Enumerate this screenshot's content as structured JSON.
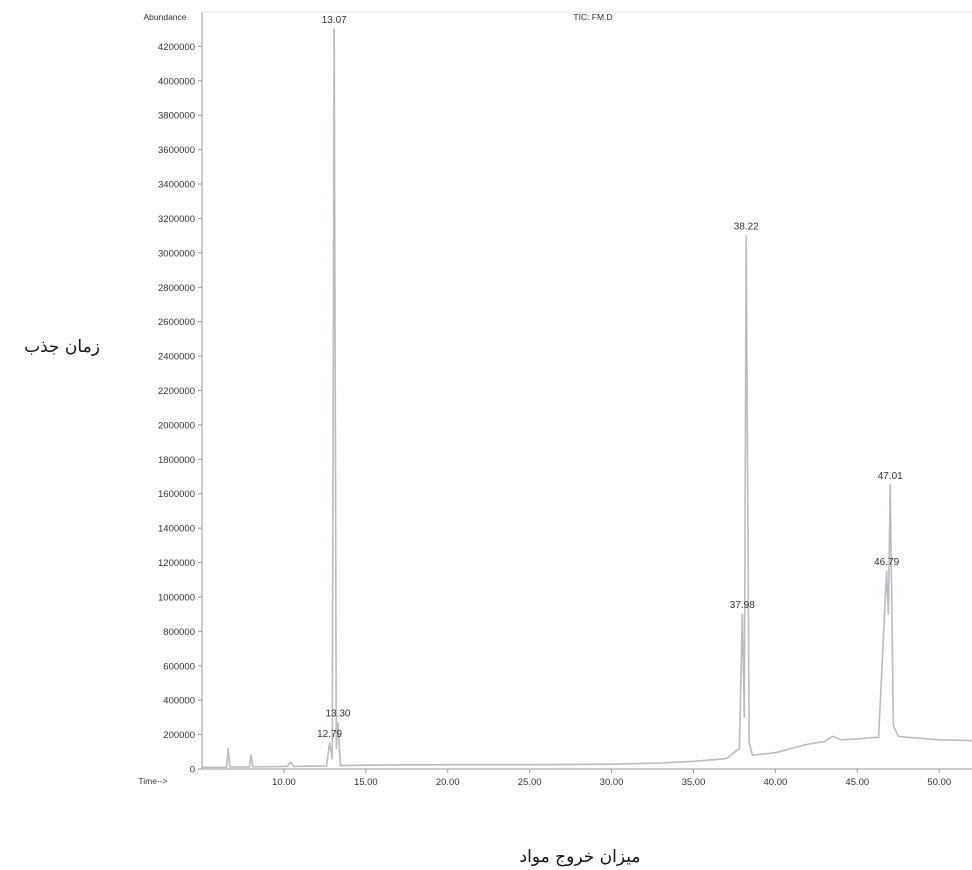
{
  "chart_data": {
    "type": "line",
    "title": "TIC: FM.D",
    "y_axis_header": "Abundance",
    "x_axis_header": "Time-->",
    "ylabel": "زمان جذب",
    "xlabel": "میزان خروج مواد",
    "xlim": [
      5.0,
      52.0
    ],
    "ylim": [
      0,
      4400000
    ],
    "x_ticks": [
      "10.00",
      "15.00",
      "20.00",
      "25.00",
      "30.00",
      "35.00",
      "40.00",
      "45.00",
      "50.00"
    ],
    "y_ticks": [
      "0",
      "200000",
      "400000",
      "600000",
      "800000",
      "1000000",
      "1200000",
      "1400000",
      "1600000",
      "1800000",
      "2000000",
      "2200000",
      "2400000",
      "2600000",
      "2800000",
      "3000000",
      "3200000",
      "3400000",
      "3600000",
      "3800000",
      "4000000",
      "4200000"
    ],
    "grid": false,
    "series": [
      {
        "x": [
          5.0,
          6.5,
          6.6,
          6.7,
          7.9,
          8.0,
          8.1,
          10.2,
          10.4,
          10.6,
          12.6,
          12.79,
          12.95,
          13.07,
          13.2,
          13.3,
          13.45,
          15.0,
          20.0,
          25.0,
          30.0,
          33.0,
          35.0,
          37.0,
          37.8,
          37.98,
          38.1,
          38.22,
          38.4,
          38.6,
          40.0,
          41.0,
          42.0,
          43.0,
          43.5,
          44.0,
          45.0,
          46.3,
          46.79,
          46.9,
          47.01,
          47.2,
          47.5,
          48.0,
          50.0,
          52.0
        ],
        "y": [
          10000,
          10000,
          120000,
          12000,
          12000,
          80000,
          12000,
          15000,
          40000,
          15000,
          18000,
          150000,
          60000,
          4300000,
          120000,
          270000,
          20000,
          22000,
          25000,
          25000,
          28000,
          35000,
          45000,
          60000,
          120000,
          900000,
          300000,
          3100000,
          150000,
          80000,
          95000,
          120000,
          145000,
          160000,
          190000,
          170000,
          175000,
          185000,
          1150000,
          900000,
          1650000,
          250000,
          190000,
          185000,
          170000,
          165000
        ]
      }
    ],
    "annotations": [
      {
        "text": "13.07",
        "x": 13.07,
        "y": 4300000
      },
      {
        "text": "12.79",
        "x": 12.79,
        "y": 150000
      },
      {
        "text": "13.30",
        "x": 13.3,
        "y": 270000
      },
      {
        "text": "37.98",
        "x": 37.98,
        "y": 900000
      },
      {
        "text": "38.22",
        "x": 38.22,
        "y": 3100000
      },
      {
        "text": "46.79",
        "x": 46.79,
        "y": 1150000
      },
      {
        "text": "47.01",
        "x": 47.01,
        "y": 1650000
      }
    ],
    "colors": {
      "trace": "#b9bcc0",
      "axis": "#777777",
      "text": "#333333"
    }
  }
}
